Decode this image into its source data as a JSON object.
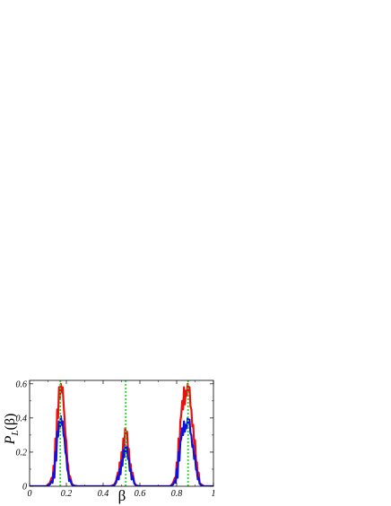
{
  "chart_data": {
    "type": "line",
    "title": "",
    "xlabel": "β",
    "ylabel_main": "P",
    "ylabel_sub": "L",
    "ylabel_arg": "(β)",
    "xlim": [
      0,
      1
    ],
    "ylim": [
      0,
      0.62
    ],
    "x_ticks": [
      0,
      0.2,
      0.4,
      0.6,
      0.8,
      1
    ],
    "x_tick_labels": [
      "0",
      "0.2",
      "0.4",
      "0.6",
      "0.8",
      "1"
    ],
    "y_ticks": [
      0,
      0.2,
      0.4,
      0.6
    ],
    "y_tick_labels": [
      "0",
      "0.2",
      "0.4",
      "0.6"
    ],
    "grid": false,
    "legend": "none",
    "reference_lines": {
      "color": "#22dd22",
      "style": "dotted",
      "x": [
        0.167,
        0.523,
        0.862
      ]
    },
    "series": [
      {
        "color": "#e81010",
        "points": [
          [
            0.0,
            0.0
          ],
          [
            0.09,
            0.0
          ],
          [
            0.1,
            0.01
          ],
          [
            0.11,
            0.02
          ],
          [
            0.12,
            0.05
          ],
          [
            0.125,
            0.03
          ],
          [
            0.13,
            0.12
          ],
          [
            0.135,
            0.08
          ],
          [
            0.14,
            0.28
          ],
          [
            0.145,
            0.2
          ],
          [
            0.15,
            0.45
          ],
          [
            0.155,
            0.4
          ],
          [
            0.16,
            0.58
          ],
          [
            0.165,
            0.52
          ],
          [
            0.17,
            0.6
          ],
          [
            0.175,
            0.55
          ],
          [
            0.18,
            0.58
          ],
          [
            0.185,
            0.48
          ],
          [
            0.19,
            0.4
          ],
          [
            0.195,
            0.3
          ],
          [
            0.2,
            0.26
          ],
          [
            0.205,
            0.15
          ],
          [
            0.21,
            0.12
          ],
          [
            0.215,
            0.05
          ],
          [
            0.22,
            0.06
          ],
          [
            0.23,
            0.015
          ],
          [
            0.24,
            0.005
          ],
          [
            0.26,
            0.0
          ],
          [
            0.44,
            0.0
          ],
          [
            0.46,
            0.01
          ],
          [
            0.47,
            0.03
          ],
          [
            0.48,
            0.08
          ],
          [
            0.485,
            0.06
          ],
          [
            0.49,
            0.14
          ],
          [
            0.495,
            0.1
          ],
          [
            0.5,
            0.2
          ],
          [
            0.505,
            0.17
          ],
          [
            0.51,
            0.28
          ],
          [
            0.515,
            0.24
          ],
          [
            0.52,
            0.34
          ],
          [
            0.525,
            0.3
          ],
          [
            0.53,
            0.32
          ],
          [
            0.535,
            0.22
          ],
          [
            0.54,
            0.22
          ],
          [
            0.545,
            0.12
          ],
          [
            0.55,
            0.13
          ],
          [
            0.555,
            0.06
          ],
          [
            0.56,
            0.08
          ],
          [
            0.57,
            0.02
          ],
          [
            0.58,
            0.005
          ],
          [
            0.6,
            0.0
          ],
          [
            0.76,
            0.0
          ],
          [
            0.77,
            0.005
          ],
          [
            0.78,
            0.02
          ],
          [
            0.79,
            0.05
          ],
          [
            0.795,
            0.03
          ],
          [
            0.8,
            0.14
          ],
          [
            0.805,
            0.08
          ],
          [
            0.81,
            0.28
          ],
          [
            0.815,
            0.2
          ],
          [
            0.82,
            0.38
          ],
          [
            0.825,
            0.42
          ],
          [
            0.83,
            0.5
          ],
          [
            0.835,
            0.45
          ],
          [
            0.84,
            0.58
          ],
          [
            0.845,
            0.48
          ],
          [
            0.85,
            0.56
          ],
          [
            0.855,
            0.53
          ],
          [
            0.86,
            0.6
          ],
          [
            0.865,
            0.56
          ],
          [
            0.87,
            0.58
          ],
          [
            0.875,
            0.47
          ],
          [
            0.88,
            0.45
          ],
          [
            0.885,
            0.35
          ],
          [
            0.89,
            0.36
          ],
          [
            0.895,
            0.25
          ],
          [
            0.9,
            0.27
          ],
          [
            0.905,
            0.15
          ],
          [
            0.91,
            0.14
          ],
          [
            0.915,
            0.06
          ],
          [
            0.92,
            0.08
          ],
          [
            0.925,
            0.02
          ],
          [
            0.935,
            0.01
          ],
          [
            0.95,
            0.0
          ],
          [
            1.0,
            0.0
          ]
        ]
      },
      {
        "color": "#1010e0",
        "points": [
          [
            0.0,
            0.0
          ],
          [
            0.09,
            0.0
          ],
          [
            0.1,
            0.005
          ],
          [
            0.11,
            0.01
          ],
          [
            0.12,
            0.03
          ],
          [
            0.125,
            0.02
          ],
          [
            0.13,
            0.08
          ],
          [
            0.135,
            0.05
          ],
          [
            0.14,
            0.2
          ],
          [
            0.145,
            0.15
          ],
          [
            0.15,
            0.32
          ],
          [
            0.155,
            0.29
          ],
          [
            0.16,
            0.38
          ],
          [
            0.165,
            0.34
          ],
          [
            0.17,
            0.41
          ],
          [
            0.175,
            0.36
          ],
          [
            0.18,
            0.38
          ],
          [
            0.185,
            0.3
          ],
          [
            0.19,
            0.28
          ],
          [
            0.195,
            0.2
          ],
          [
            0.2,
            0.18
          ],
          [
            0.205,
            0.1
          ],
          [
            0.21,
            0.08
          ],
          [
            0.215,
            0.03
          ],
          [
            0.22,
            0.04
          ],
          [
            0.23,
            0.01
          ],
          [
            0.24,
            0.003
          ],
          [
            0.26,
            0.0
          ],
          [
            0.44,
            0.0
          ],
          [
            0.46,
            0.005
          ],
          [
            0.47,
            0.02
          ],
          [
            0.48,
            0.06
          ],
          [
            0.485,
            0.04
          ],
          [
            0.49,
            0.1
          ],
          [
            0.495,
            0.07
          ],
          [
            0.5,
            0.15
          ],
          [
            0.505,
            0.12
          ],
          [
            0.51,
            0.21
          ],
          [
            0.515,
            0.17
          ],
          [
            0.52,
            0.24
          ],
          [
            0.525,
            0.2
          ],
          [
            0.53,
            0.23
          ],
          [
            0.535,
            0.16
          ],
          [
            0.54,
            0.16
          ],
          [
            0.545,
            0.09
          ],
          [
            0.55,
            0.1
          ],
          [
            0.555,
            0.04
          ],
          [
            0.56,
            0.06
          ],
          [
            0.57,
            0.015
          ],
          [
            0.58,
            0.003
          ],
          [
            0.6,
            0.0
          ],
          [
            0.76,
            0.0
          ],
          [
            0.77,
            0.003
          ],
          [
            0.78,
            0.01
          ],
          [
            0.79,
            0.03
          ],
          [
            0.795,
            0.02
          ],
          [
            0.8,
            0.1
          ],
          [
            0.805,
            0.05
          ],
          [
            0.81,
            0.2
          ],
          [
            0.815,
            0.15
          ],
          [
            0.82,
            0.26
          ],
          [
            0.825,
            0.28
          ],
          [
            0.83,
            0.34
          ],
          [
            0.835,
            0.3
          ],
          [
            0.84,
            0.38
          ],
          [
            0.845,
            0.32
          ],
          [
            0.85,
            0.36
          ],
          [
            0.855,
            0.34
          ],
          [
            0.86,
            0.4
          ],
          [
            0.865,
            0.37
          ],
          [
            0.87,
            0.39
          ],
          [
            0.875,
            0.31
          ],
          [
            0.88,
            0.3
          ],
          [
            0.885,
            0.23
          ],
          [
            0.89,
            0.24
          ],
          [
            0.895,
            0.16
          ],
          [
            0.9,
            0.18
          ],
          [
            0.905,
            0.1
          ],
          [
            0.91,
            0.09
          ],
          [
            0.915,
            0.04
          ],
          [
            0.92,
            0.05
          ],
          [
            0.925,
            0.015
          ],
          [
            0.935,
            0.005
          ],
          [
            0.95,
            0.0
          ],
          [
            1.0,
            0.0
          ]
        ]
      }
    ]
  }
}
